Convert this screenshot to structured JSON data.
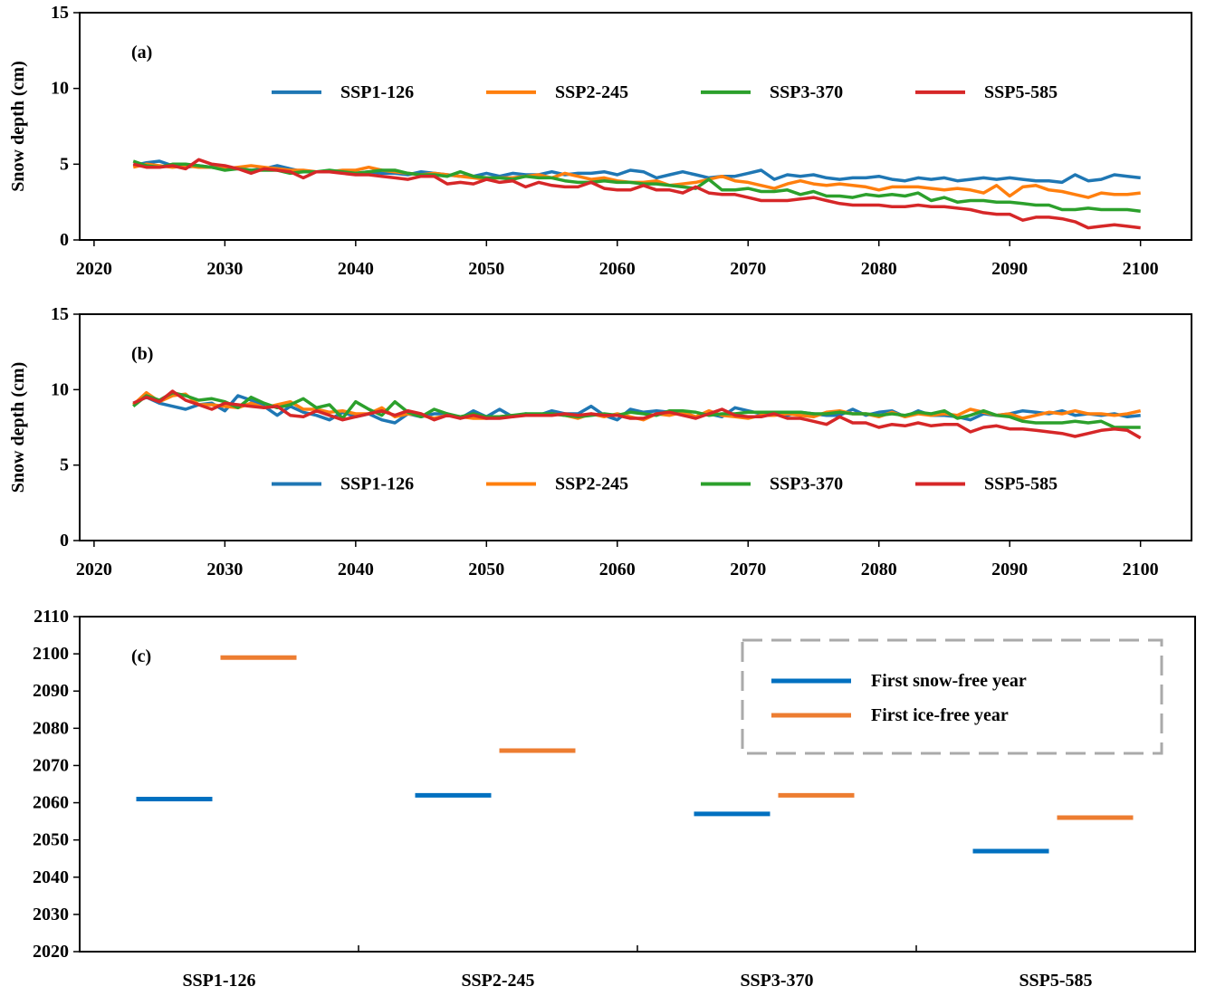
{
  "chart_data": [
    {
      "type": "line",
      "annotation": "(a)",
      "ylabel": "Snow depth (cm)",
      "x": [
        2023,
        2024,
        2025,
        2026,
        2027,
        2028,
        2029,
        2030,
        2031,
        2032,
        2033,
        2034,
        2035,
        2036,
        2037,
        2038,
        2039,
        2040,
        2041,
        2042,
        2043,
        2044,
        2045,
        2046,
        2047,
        2048,
        2049,
        2050,
        2051,
        2052,
        2053,
        2054,
        2055,
        2056,
        2057,
        2058,
        2059,
        2060,
        2061,
        2062,
        2063,
        2064,
        2065,
        2066,
        2067,
        2068,
        2069,
        2070,
        2071,
        2072,
        2073,
        2074,
        2075,
        2076,
        2077,
        2078,
        2079,
        2080,
        2081,
        2082,
        2083,
        2084,
        2085,
        2086,
        2087,
        2088,
        2089,
        2090,
        2091,
        2092,
        2093,
        2094,
        2095,
        2096,
        2097,
        2098,
        2099,
        2100
      ],
      "xlim": [
        2018.9,
        2103.9
      ],
      "xticks": [
        2020,
        2030,
        2040,
        2050,
        2060,
        2070,
        2080,
        2090,
        2100
      ],
      "ylim": [
        0,
        15
      ],
      "yticks": [
        0,
        5,
        10,
        15
      ],
      "legend": "upper center",
      "series": [
        {
          "name": "SSP1-126",
          "color": "#1f77b4",
          "values": [
            4.9,
            5.1,
            5.2,
            4.9,
            4.8,
            4.9,
            4.8,
            4.7,
            4.7,
            4.6,
            4.7,
            4.9,
            4.7,
            4.5,
            4.5,
            4.5,
            4.5,
            4.4,
            4.5,
            4.4,
            4.4,
            4.3,
            4.5,
            4.4,
            4.3,
            4.2,
            4.2,
            4.4,
            4.2,
            4.4,
            4.3,
            4.3,
            4.5,
            4.3,
            4.4,
            4.4,
            4.5,
            4.3,
            4.6,
            4.5,
            4.1,
            4.3,
            4.5,
            4.3,
            4.1,
            4.2,
            4.2,
            4.4,
            4.6,
            4.0,
            4.3,
            4.2,
            4.3,
            4.1,
            4.0,
            4.1,
            4.1,
            4.2,
            4.0,
            3.9,
            4.1,
            4.0,
            4.1,
            3.9,
            4.0,
            4.1,
            4.0,
            4.1,
            4.0,
            3.9,
            3.9,
            3.8,
            4.3,
            3.9,
            4.0,
            4.3,
            4.2,
            4.1
          ]
        },
        {
          "name": "SSP2-245",
          "color": "#ff7f0e",
          "values": [
            4.8,
            5.0,
            4.9,
            4.8,
            4.9,
            4.8,
            4.8,
            4.7,
            4.8,
            4.9,
            4.8,
            4.7,
            4.6,
            4.6,
            4.5,
            4.5,
            4.6,
            4.6,
            4.8,
            4.6,
            4.5,
            4.4,
            4.3,
            4.4,
            4.3,
            4.2,
            4.1,
            4.0,
            4.1,
            4.1,
            4.2,
            4.3,
            4.1,
            4.4,
            4.2,
            4.0,
            4.1,
            3.9,
            3.8,
            3.8,
            3.9,
            3.6,
            3.7,
            3.8,
            4.0,
            4.2,
            3.9,
            3.8,
            3.6,
            3.4,
            3.7,
            3.9,
            3.7,
            3.6,
            3.7,
            3.6,
            3.5,
            3.3,
            3.5,
            3.5,
            3.5,
            3.4,
            3.3,
            3.4,
            3.3,
            3.1,
            3.6,
            2.9,
            3.5,
            3.6,
            3.3,
            3.2,
            3.0,
            2.8,
            3.1,
            3.0,
            3.0,
            3.1
          ]
        },
        {
          "name": "SSP3-370",
          "color": "#2ca02c",
          "values": [
            5.2,
            4.9,
            4.8,
            5.0,
            5.0,
            4.9,
            4.8,
            4.6,
            4.7,
            4.6,
            4.6,
            4.6,
            4.4,
            4.5,
            4.5,
            4.6,
            4.5,
            4.4,
            4.5,
            4.6,
            4.6,
            4.4,
            4.3,
            4.3,
            4.2,
            4.5,
            4.2,
            4.1,
            4.1,
            4.0,
            4.2,
            4.1,
            4.1,
            3.9,
            3.8,
            3.8,
            3.9,
            3.8,
            3.8,
            3.7,
            3.7,
            3.6,
            3.5,
            3.4,
            4.0,
            3.3,
            3.3,
            3.4,
            3.2,
            3.2,
            3.3,
            3.0,
            3.2,
            2.9,
            2.9,
            2.8,
            3.0,
            2.9,
            3.0,
            2.9,
            3.1,
            2.6,
            2.8,
            2.5,
            2.6,
            2.6,
            2.5,
            2.5,
            2.4,
            2.3,
            2.3,
            2.0,
            2.0,
            2.1,
            2.0,
            2.0,
            2.0,
            1.9
          ]
        },
        {
          "name": "SSP5-585",
          "color": "#d62728",
          "values": [
            5.0,
            4.8,
            4.8,
            4.9,
            4.7,
            5.3,
            5.0,
            4.9,
            4.7,
            4.4,
            4.7,
            4.6,
            4.5,
            4.1,
            4.5,
            4.5,
            4.4,
            4.3,
            4.3,
            4.2,
            4.1,
            4.0,
            4.2,
            4.2,
            3.7,
            3.8,
            3.7,
            4.0,
            3.8,
            3.9,
            3.5,
            3.8,
            3.6,
            3.5,
            3.5,
            3.8,
            3.4,
            3.3,
            3.3,
            3.6,
            3.3,
            3.3,
            3.1,
            3.5,
            3.1,
            3.0,
            3.0,
            2.8,
            2.6,
            2.6,
            2.6,
            2.7,
            2.8,
            2.6,
            2.4,
            2.3,
            2.3,
            2.3,
            2.2,
            2.2,
            2.3,
            2.2,
            2.2,
            2.1,
            2.0,
            1.8,
            1.7,
            1.7,
            1.3,
            1.5,
            1.5,
            1.4,
            1.2,
            0.8,
            0.9,
            1.0,
            0.9,
            0.8
          ]
        }
      ]
    },
    {
      "type": "line",
      "annotation": "(b)",
      "ylabel": "Snow depth (cm)",
      "x": [
        2023,
        2024,
        2025,
        2026,
        2027,
        2028,
        2029,
        2030,
        2031,
        2032,
        2033,
        2034,
        2035,
        2036,
        2037,
        2038,
        2039,
        2040,
        2041,
        2042,
        2043,
        2044,
        2045,
        2046,
        2047,
        2048,
        2049,
        2050,
        2051,
        2052,
        2053,
        2054,
        2055,
        2056,
        2057,
        2058,
        2059,
        2060,
        2061,
        2062,
        2063,
        2064,
        2065,
        2066,
        2067,
        2068,
        2069,
        2070,
        2071,
        2072,
        2073,
        2074,
        2075,
        2076,
        2077,
        2078,
        2079,
        2080,
        2081,
        2082,
        2083,
        2084,
        2085,
        2086,
        2087,
        2088,
        2089,
        2090,
        2091,
        2092,
        2093,
        2094,
        2095,
        2096,
        2097,
        2098,
        2099,
        2100
      ],
      "xlim": [
        2018.9,
        2103.9
      ],
      "xticks": [
        2020,
        2030,
        2040,
        2050,
        2060,
        2070,
        2080,
        2090,
        2100
      ],
      "ylim": [
        0,
        15
      ],
      "yticks": [
        0,
        5,
        10,
        15
      ],
      "legend": "lower center",
      "series": [
        {
          "name": "SSP1-126",
          "color": "#1f77b4",
          "values": [
            9.1,
            9.5,
            9.1,
            8.9,
            8.7,
            9.0,
            9.1,
            8.6,
            9.6,
            9.3,
            8.9,
            8.3,
            8.9,
            8.5,
            8.3,
            8.0,
            8.5,
            8.2,
            8.4,
            8.0,
            7.8,
            8.4,
            8.2,
            8.4,
            8.4,
            8.1,
            8.6,
            8.2,
            8.7,
            8.2,
            8.4,
            8.3,
            8.6,
            8.4,
            8.4,
            8.9,
            8.3,
            8.0,
            8.7,
            8.5,
            8.6,
            8.5,
            8.5,
            8.2,
            8.4,
            8.2,
            8.8,
            8.6,
            8.4,
            8.4,
            8.3,
            8.5,
            8.4,
            8.3,
            8.3,
            8.7,
            8.3,
            8.5,
            8.6,
            8.2,
            8.6,
            8.3,
            8.3,
            8.2,
            8.0,
            8.4,
            8.3,
            8.4,
            8.6,
            8.5,
            8.4,
            8.6,
            8.3,
            8.4,
            8.3,
            8.4,
            8.2,
            8.3
          ]
        },
        {
          "name": "SSP2-245",
          "color": "#ff7f0e",
          "values": [
            9.0,
            9.8,
            9.2,
            9.6,
            9.7,
            9.0,
            9.0,
            8.9,
            8.8,
            9.1,
            8.8,
            9.0,
            9.2,
            8.7,
            8.7,
            8.5,
            8.6,
            8.4,
            8.4,
            8.8,
            8.2,
            8.4,
            8.3,
            8.1,
            8.3,
            8.2,
            8.1,
            8.1,
            8.2,
            8.3,
            8.3,
            8.3,
            8.4,
            8.3,
            8.1,
            8.4,
            8.2,
            8.4,
            8.2,
            8.0,
            8.4,
            8.3,
            8.5,
            8.2,
            8.6,
            8.3,
            8.2,
            8.1,
            8.3,
            8.3,
            8.4,
            8.3,
            8.2,
            8.5,
            8.6,
            8.4,
            8.4,
            8.2,
            8.5,
            8.2,
            8.4,
            8.3,
            8.4,
            8.3,
            8.7,
            8.5,
            8.3,
            8.4,
            8.1,
            8.3,
            8.5,
            8.4,
            8.6,
            8.4,
            8.4,
            8.3,
            8.4,
            8.6
          ]
        },
        {
          "name": "SSP3-370",
          "color": "#2ca02c",
          "values": [
            8.9,
            9.6,
            9.3,
            9.8,
            9.6,
            9.3,
            9.4,
            9.2,
            8.8,
            9.5,
            9.1,
            8.8,
            9.0,
            9.4,
            8.8,
            9.0,
            8.1,
            9.2,
            8.7,
            8.3,
            9.2,
            8.5,
            8.2,
            8.7,
            8.4,
            8.2,
            8.4,
            8.2,
            8.2,
            8.3,
            8.4,
            8.4,
            8.4,
            8.3,
            8.2,
            8.3,
            8.4,
            8.3,
            8.5,
            8.4,
            8.3,
            8.6,
            8.6,
            8.5,
            8.3,
            8.4,
            8.4,
            8.5,
            8.5,
            8.5,
            8.5,
            8.5,
            8.4,
            8.4,
            8.5,
            8.4,
            8.4,
            8.3,
            8.4,
            8.3,
            8.5,
            8.4,
            8.6,
            8.1,
            8.3,
            8.6,
            8.3,
            8.2,
            7.9,
            7.8,
            7.8,
            7.8,
            7.9,
            7.8,
            7.9,
            7.5,
            7.5,
            7.5
          ]
        },
        {
          "name": "SSP5-585",
          "color": "#d62728",
          "values": [
            9.1,
            9.5,
            9.2,
            9.9,
            9.3,
            9.0,
            8.7,
            9.1,
            9.0,
            8.9,
            8.8,
            8.9,
            8.3,
            8.2,
            8.6,
            8.3,
            8.0,
            8.2,
            8.4,
            8.6,
            8.3,
            8.6,
            8.4,
            8.0,
            8.3,
            8.1,
            8.3,
            8.1,
            8.1,
            8.2,
            8.3,
            8.3,
            8.3,
            8.4,
            8.3,
            8.4,
            8.3,
            8.3,
            8.1,
            8.1,
            8.4,
            8.5,
            8.3,
            8.1,
            8.4,
            8.7,
            8.3,
            8.2,
            8.2,
            8.4,
            8.1,
            8.1,
            7.9,
            7.7,
            8.2,
            7.8,
            7.8,
            7.5,
            7.7,
            7.6,
            7.8,
            7.6,
            7.7,
            7.7,
            7.2,
            7.5,
            7.6,
            7.4,
            7.4,
            7.3,
            7.2,
            7.1,
            6.9,
            7.1,
            7.3,
            7.4,
            7.3,
            6.8
          ]
        }
      ]
    },
    {
      "type": "marker",
      "annotation": "(c)",
      "categories": [
        "SSP1-126",
        "SSP2-245",
        "SSP3-370",
        "SSP5-585"
      ],
      "ylim": [
        2020,
        2110
      ],
      "yticks": [
        2020,
        2030,
        2040,
        2050,
        2060,
        2070,
        2080,
        2090,
        2100,
        2110
      ],
      "legend": "upper right",
      "legend_frame": "dashed",
      "series": [
        {
          "name": "First snow-free year",
          "color": "#0070c0",
          "values": [
            2061,
            2062,
            2057,
            2047
          ]
        },
        {
          "name": "First ice-free year",
          "color": "#ed7d31",
          "values": [
            2099,
            2074,
            2062,
            2056
          ]
        }
      ]
    }
  ]
}
